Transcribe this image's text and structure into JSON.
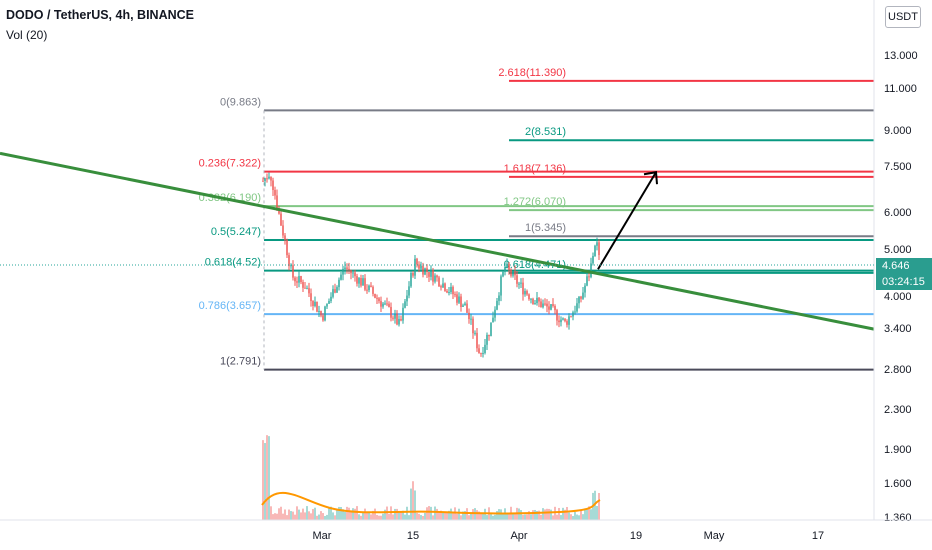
{
  "header": {
    "title": "DODO / TetherUS, 4h, BINANCE",
    "volume_label": "Vol (20)",
    "currency": "USDT"
  },
  "price_scale": {
    "last_price": "4.646",
    "countdown": "03:24:15",
    "ticks": [
      "13.000",
      "11.000",
      "9.000",
      "7.500",
      "6.000",
      "5.000",
      "4.000",
      "3.400",
      "2.800",
      "2.300",
      "1.900",
      "1.600",
      "1.360"
    ],
    "top_tick_partial": "1"
  },
  "time_axis": {
    "ticks": [
      "Mar",
      "15",
      "Apr",
      "19",
      "May",
      "17"
    ]
  },
  "colors": {
    "up": "#26a69a",
    "down": "#ef5350",
    "trendline": "#388e3c",
    "fib_gray": "#787b86",
    "fib_red": "#f23645",
    "fib_teal": "#089981",
    "fib_green": "#81c784",
    "fib_blue": "#64b5f6",
    "fib_dark": "#4a4a5a",
    "volume_ma": "#ff9800",
    "arrow": "#000000"
  },
  "chart_data": {
    "type": "candlestick",
    "symbol": "DODO / TetherUS",
    "interval": "4h",
    "exchange": "BINANCE",
    "y_scale": "log",
    "last_price": 4.646,
    "fib_retracement": [
      {
        "label": "0(9.863)",
        "level": 0,
        "price": 9.863
      },
      {
        "label": "0.236(7.322)",
        "level": 0.236,
        "price": 7.322
      },
      {
        "label": "0.382(6.190)",
        "level": 0.382,
        "price": 6.19
      },
      {
        "label": "0.5(5.247)",
        "level": 0.5,
        "price": 5.247
      },
      {
        "label": "0.618(4.52)",
        "level": 0.618,
        "price": 4.52
      },
      {
        "label": "0.786(3.657)",
        "level": 0.786,
        "price": 3.657
      },
      {
        "label": "1(2.791)",
        "level": 1,
        "price": 2.791
      }
    ],
    "fib_extension": [
      {
        "label": "2.618(11.390)",
        "level": 2.618,
        "price": 11.39
      },
      {
        "label": "2(8.531)",
        "level": 2,
        "price": 8.531
      },
      {
        "label": "1.618(7.136)",
        "level": 1.618,
        "price": 7.136
      },
      {
        "label": "1.272(6.070)",
        "level": 1.272,
        "price": 6.07
      },
      {
        "label": "1(5.345)",
        "level": 1,
        "price": 5.345
      },
      {
        "label": "0.618(4.471)",
        "level": 0.618,
        "price": 4.471
      }
    ],
    "trendline": {
      "from_price": 8.0,
      "to_price": 3.4
    },
    "projection_arrow": {
      "from_price": 4.55,
      "to_price": 7.3
    }
  }
}
